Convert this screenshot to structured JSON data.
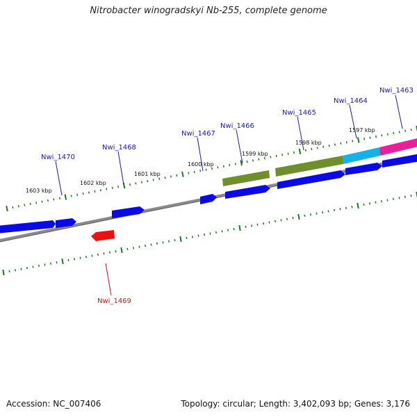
{
  "title": "Nitrobacter winogradskyi Nb-255, complete genome",
  "accession": "Accession: NC_007406",
  "topology": "Topology: circular; Length: 3,402,093 bp; Genes: 3,176",
  "colors": {
    "forward_gene": "#0a0ae6",
    "reverse_gene": "#ee1111",
    "tick": "#1c7a1c",
    "backbone": "#8a8a8a",
    "gene_label_forward": "#1a1aaa",
    "gene_label_reverse": "#cc1111",
    "feature_olive": "#6f8f2a",
    "feature_cyan": "#13b3ea",
    "feature_pink": "#ea1f9c"
  },
  "scale_labels": [
    "1603 kbp",
    "1602 kbp",
    "1601 kbp",
    "1600 kbp",
    "1599 kbp",
    "1598 kbp",
    "1597 kbp"
  ],
  "gene_labels": [
    {
      "id": "nwi1470",
      "text": "Nwi_1470",
      "strand": "forward"
    },
    {
      "id": "nwi1468",
      "text": "Nwi_1468",
      "strand": "forward"
    },
    {
      "id": "nwi1467",
      "text": "Nwi_1467",
      "strand": "forward"
    },
    {
      "id": "nwi1466",
      "text": "Nwi_1466",
      "strand": "forward"
    },
    {
      "id": "nwi1465",
      "text": "Nwi_1465",
      "strand": "forward"
    },
    {
      "id": "nwi1464",
      "text": "Nwi_1464",
      "strand": "forward"
    },
    {
      "id": "nwi1463",
      "text": "Nwi_1463",
      "strand": "forward"
    },
    {
      "id": "nwi1469",
      "text": "Nwi_1469",
      "strand": "reverse"
    }
  ]
}
